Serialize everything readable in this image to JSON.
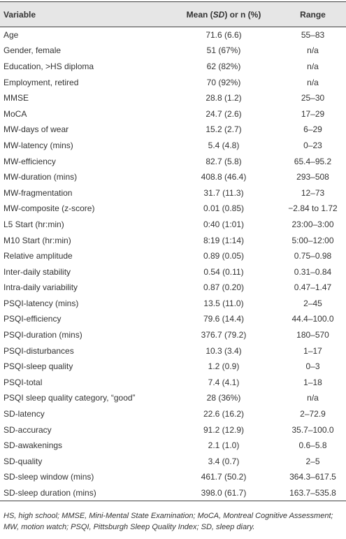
{
  "header": {
    "variable": "Variable",
    "mean": [
      "Mean (",
      "SD",
      ") or n (%)"
    ],
    "range": "Range"
  },
  "rows": [
    [
      "Age",
      "71.6 (6.6)",
      "55–83"
    ],
    [
      "Gender, female",
      "51 (67%)",
      "n/a"
    ],
    [
      "Education, >HS diploma",
      "62 (82%)",
      "n/a"
    ],
    [
      "Employment, retired",
      "70 (92%)",
      "n/a"
    ],
    [
      "MMSE",
      "28.8 (1.2)",
      "25–30"
    ],
    [
      "MoCA",
      "24.7 (2.6)",
      "17–29"
    ],
    [
      "MW-days of wear",
      "15.2 (2.7)",
      "6–29"
    ],
    [
      "MW-latency (mins)",
      "5.4 (4.8)",
      "0–23"
    ],
    [
      "MW-efficiency",
      "82.7 (5.8)",
      "65.4–95.2"
    ],
    [
      "MW-duration (mins)",
      "408.8 (46.4)",
      "293–508"
    ],
    [
      "MW-fragmentation",
      "31.7 (11.3)",
      "12–73"
    ],
    [
      "MW-composite (z-score)",
      "0.01 (0.85)",
      "−2.84 to 1.72"
    ],
    [
      "L5 Start (hr:min)",
      "0:40 (1:01)",
      "23:00–3:00"
    ],
    [
      "M10 Start (hr:min)",
      "8:19 (1:14)",
      "5:00–12:00"
    ],
    [
      "Relative amplitude",
      "0.89 (0.05)",
      "0.75–0.98"
    ],
    [
      "Inter-daily stability",
      "0.54 (0.11)",
      "0.31–0.84"
    ],
    [
      "Intra-daily variability",
      "0.87 (0.20)",
      "0.47–1.47"
    ],
    [
      "PSQI-latency (mins)",
      "13.5 (11.0)",
      "2–45"
    ],
    [
      "PSQI-efficiency",
      "79.6 (14.4)",
      "44.4–100.0"
    ],
    [
      "PSQI-duration (mins)",
      "376.7 (79.2)",
      "180–570"
    ],
    [
      "PSQI-disturbances",
      "10.3 (3.4)",
      "1–17"
    ],
    [
      "PSQI-sleep quality",
      "1.2 (0.9)",
      "0–3"
    ],
    [
      "PSQI-total",
      "7.4 (4.1)",
      "1–18"
    ],
    [
      "PSQI sleep quality category, “good”",
      "28 (36%)",
      "n/a"
    ],
    [
      "SD-latency",
      "22.6 (16.2)",
      "2–72.9"
    ],
    [
      "SD-accuracy",
      "91.2 (12.9)",
      "35.7–100.0"
    ],
    [
      "SD-awakenings",
      "2.1 (1.0)",
      "0.6–5.8"
    ],
    [
      "SD-quality",
      "3.4 (0.7)",
      "2–5"
    ],
    [
      "SD-sleep window (mins)",
      "461.7 (50.2)",
      "364.3–617.5"
    ],
    [
      "SD-sleep duration (mins)",
      "398.0 (61.7)",
      "163.7–535.8"
    ]
  ],
  "footnote": "HS, high school; MMSE, Mini-Mental State Examination; MoCA, Montreal Cognitive Assessment; MW, motion watch; PSQI, Pittsburgh Sleep Quality Index; SD, sleep diary."
}
